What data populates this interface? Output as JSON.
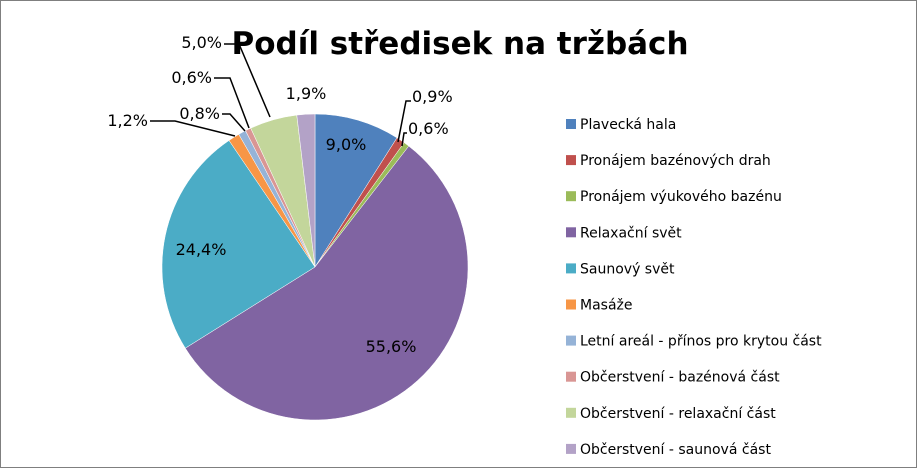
{
  "chart_data": {
    "type": "pie",
    "title": "Podíl středisek na tržbách",
    "legend_position": "right",
    "slices": [
      {
        "name": "Plavecká hala",
        "value": 9.0,
        "label": "9,0%",
        "color": "#4F81BD"
      },
      {
        "name": "Pronájem bazénových drah",
        "value": 0.9,
        "label": "0,9%",
        "color": "#C0504D"
      },
      {
        "name": "Pronájem výukového bazénu",
        "value": 0.6,
        "label": "0,6%",
        "color": "#9BBB59"
      },
      {
        "name": "Relaxační svět",
        "value": 55.6,
        "label": "55,6%",
        "color": "#8064A2"
      },
      {
        "name": "Saunový svět",
        "value": 24.4,
        "label": "24,4%",
        "color": "#4BACC6"
      },
      {
        "name": "Masáže",
        "value": 1.2,
        "label": "1,2%",
        "color": "#F79646"
      },
      {
        "name": "Letní areál - přínos pro krytou část",
        "value": 0.8,
        "label": "0,8%",
        "color": "#95B3D7"
      },
      {
        "name": "Občerstvení - bazénová část",
        "value": 0.6,
        "label": "0,6%",
        "color": "#D99694"
      },
      {
        "name": "Občerstvení - relaxační část",
        "value": 5.0,
        "label": "5,0%",
        "color": "#C3D69B"
      },
      {
        "name": "Občerstvení - saunová část",
        "value": 1.9,
        "label": "1,9%",
        "color": "#B3A2C7"
      }
    ]
  }
}
